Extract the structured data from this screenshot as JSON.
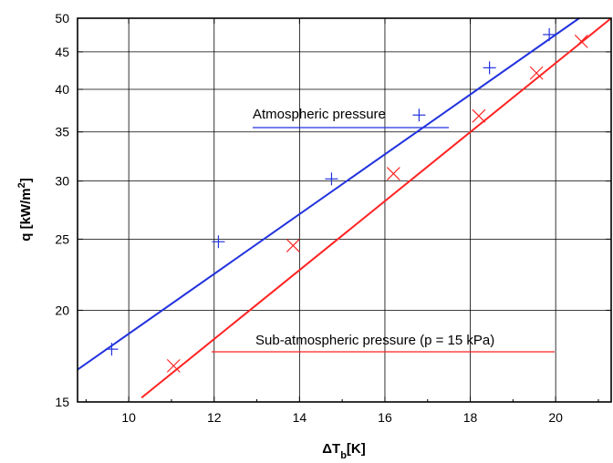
{
  "chart_data": {
    "type": "scatter",
    "x_scale": "linear",
    "y_scale": "log",
    "xlim": [
      8.8,
      21.3
    ],
    "ylim": [
      15,
      50
    ],
    "x_ticks": [
      10,
      12,
      14,
      16,
      18,
      20
    ],
    "y_ticks": [
      15,
      20,
      25,
      30,
      35,
      40,
      45,
      50
    ],
    "x_tick_labels": [
      "10",
      "12",
      "14",
      "16",
      "18",
      "20"
    ],
    "y_tick_labels": [
      "15",
      "20",
      "25",
      "30",
      "35",
      "40",
      "45",
      "50"
    ],
    "grid": true,
    "xlabel": {
      "prefix": "ΔT",
      "sub": "b",
      "suffix": "[K]"
    },
    "ylabel": {
      "prefix": "q [kW/m",
      "sup": "2",
      "suffix": "]"
    },
    "series": [
      {
        "name": "Atmospheric pressure",
        "color": "#2233dd",
        "marker": "plus",
        "x": [
          9.6,
          12.1,
          14.75,
          16.8,
          18.45,
          19.85
        ],
        "y": [
          17.7,
          24.8,
          30.2,
          36.9,
          42.8,
          47.5
        ],
        "fit_line": {
          "x": [
            8.8,
            20.55
          ],
          "y": [
            16.6,
            50
          ]
        }
      },
      {
        "name": "Sub-atmospheric pressure (p = 15 kPa)",
        "color": "#ff2222",
        "marker": "cross",
        "x": [
          11.05,
          13.85,
          16.2,
          18.2,
          19.55,
          20.6
        ],
        "y": [
          16.8,
          24.5,
          30.7,
          36.8,
          42.1,
          46.5
        ],
        "fit_line": {
          "x": [
            10.3,
            21.3
          ],
          "y": [
            15.2,
            50
          ]
        }
      }
    ],
    "legend": [
      {
        "text": "Atmospheric pressure",
        "series": 0,
        "placement": "upper-middle"
      },
      {
        "text": "Sub-atmospheric pressure (p = 15 kPa)",
        "series": 1,
        "placement": "lower-right"
      }
    ]
  }
}
